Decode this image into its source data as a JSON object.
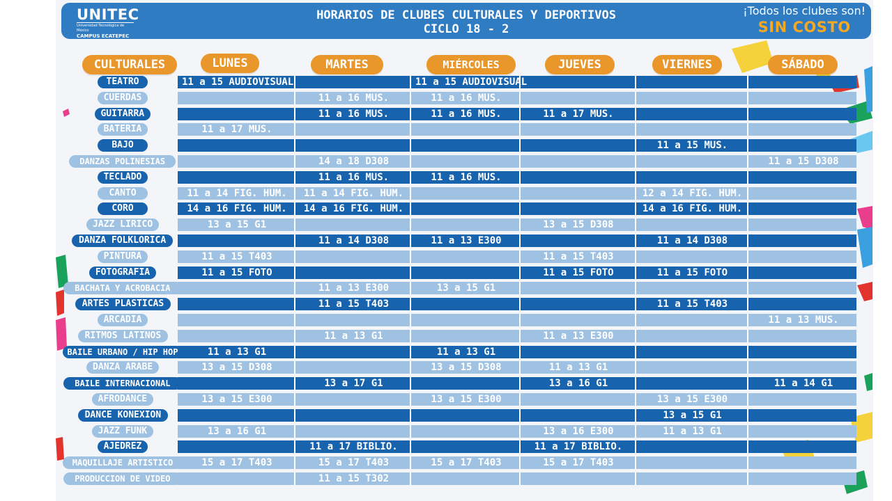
{
  "header": {
    "logo_main": "UNITEC",
    "logo_sub": "Universidad Tecnológica de México",
    "logo_campus": "CAMPUS ECATEPEC",
    "title_line1": "HORARIOS DE CLUBES CULTURALES Y DEPORTIVOS",
    "title_line2": "CICLO 18 - 2",
    "promo_line1": "¡Todos los clubes son!",
    "promo_line2": "SIN COSTO"
  },
  "section_label": "CULTURALES",
  "days": [
    "LUNES",
    "MARTES",
    "MIÉRCOLES",
    "JUEVES",
    "VIERNES",
    "SÁBADO"
  ],
  "colors": {
    "dark_row": "#1863ad",
    "light_row": "#9fc1e2",
    "header": "#2f7cc3",
    "pill": "#e9962a",
    "promo": "#f7a823"
  },
  "clubs": [
    {
      "name": "TEATRO",
      "shade": "dark",
      "schedule": [
        "11 a 15 AUDIOVISUAL",
        "",
        "11 a 15 AUDIOVISUAL",
        "",
        "",
        ""
      ]
    },
    {
      "name": "CUERDAS",
      "shade": "light",
      "schedule": [
        "",
        "11 a 16 MUS.",
        "11 a 16 MUS.",
        "",
        "",
        ""
      ]
    },
    {
      "name": "GUITARRA",
      "shade": "dark",
      "schedule": [
        "",
        "11 a 16 MUS.",
        "11 a 16 MUS.",
        "11 a 17 MUS.",
        "",
        ""
      ]
    },
    {
      "name": "BATERIA",
      "shade": "light",
      "schedule": [
        "11 a 17 MUS.",
        "",
        "",
        "",
        "",
        ""
      ]
    },
    {
      "name": "BAJO",
      "shade": "dark",
      "schedule": [
        "",
        "",
        "",
        "",
        "11 a 15 MUS.",
        ""
      ]
    },
    {
      "name": "DANZAS POLINESIAS",
      "shade": "light",
      "schedule": [
        "",
        "14 a 18 D308",
        "",
        "",
        "",
        "11 a 15 D308"
      ]
    },
    {
      "name": "TECLADO",
      "shade": "dark",
      "schedule": [
        "",
        "11 a 16 MUS.",
        "11 a 16 MUS.",
        "",
        "",
        ""
      ]
    },
    {
      "name": "CANTO",
      "shade": "light",
      "schedule": [
        "11 a 14 FIG. HUM.",
        "11 a 14 FIG. HUM.",
        "",
        "",
        "12 a 14 FIG. HUM.",
        ""
      ]
    },
    {
      "name": "CORO",
      "shade": "dark",
      "schedule": [
        "14 a 16 FIG. HUM.",
        "14 a 16 FIG. HUM.",
        "",
        "",
        "14 a 16 FIG. HUM.",
        ""
      ]
    },
    {
      "name": "JAZZ LIRICO",
      "shade": "light",
      "schedule": [
        "13 a 15 G1",
        "",
        "",
        "13 a 15 D308",
        "",
        ""
      ]
    },
    {
      "name": "DANZA FOLKLORICA",
      "shade": "dark",
      "schedule": [
        "",
        "11 a 14 D308",
        "11 a 13 E300",
        "",
        "11 a 14 D308",
        ""
      ]
    },
    {
      "name": "PINTURA",
      "shade": "light",
      "schedule": [
        "11 a 15 T403",
        "",
        "",
        "11 a 15 T403",
        "",
        ""
      ]
    },
    {
      "name": "FOTOGRAFIA",
      "shade": "dark",
      "schedule": [
        "11 a 15 FOTO",
        "",
        "",
        "11 a 15 FOTO",
        "11 a 15 FOTO",
        ""
      ]
    },
    {
      "name": "BACHATA Y ACROBACIA",
      "shade": "light",
      "schedule": [
        "",
        "11 a 13 E300",
        "13 a 15 G1",
        "",
        "",
        ""
      ]
    },
    {
      "name": "ARTES PLASTICAS",
      "shade": "dark",
      "schedule": [
        "",
        "11 a 15 T403",
        "",
        "",
        "11 a 15 T403",
        ""
      ]
    },
    {
      "name": "ARCADIA",
      "shade": "light",
      "schedule": [
        "",
        "",
        "",
        "",
        "",
        "11 a 13 MUS."
      ]
    },
    {
      "name": "RITMOS LATINOS",
      "shade": "light",
      "schedule": [
        "",
        "11 a 13 G1",
        "",
        "11 a 13 E300",
        "",
        ""
      ]
    },
    {
      "name": "BAILE URBANO / HIP HOP",
      "shade": "dark",
      "schedule": [
        "11 a 13 G1",
        "",
        "11 a 13 G1",
        "",
        "",
        ""
      ]
    },
    {
      "name": "DANZA ARABE",
      "shade": "light",
      "schedule": [
        "13 a 15 D308",
        "",
        "13 a 15 D308",
        "11 a 13 G1",
        "",
        ""
      ]
    },
    {
      "name": "BAILE INTERNACIONAL",
      "shade": "dark",
      "schedule": [
        "",
        "13 a 17 G1",
        "",
        "13 a 16 G1",
        "",
        "11 a 14 G1"
      ]
    },
    {
      "name": "AFRODANCE",
      "shade": "light",
      "schedule": [
        "13 a 15 E300",
        "",
        "13 a 15 E300",
        "",
        "13 a 15 E300",
        ""
      ]
    },
    {
      "name": "DANCE KONEXION",
      "shade": "dark",
      "schedule": [
        "",
        "",
        "",
        "",
        "13 a 15 G1",
        ""
      ]
    },
    {
      "name": "JAZZ FUNK",
      "shade": "light",
      "schedule": [
        "13 a 16 G1",
        "",
        "",
        "13 a 16 E300",
        "11 a 13 G1",
        ""
      ]
    },
    {
      "name": "AJEDREZ",
      "shade": "dark",
      "schedule": [
        "",
        "11 a 17 BIBLIO.",
        "",
        "11 a 17 BIBLIO.",
        "",
        ""
      ]
    },
    {
      "name": "MAQUILLAJE ARTISTICO",
      "shade": "light",
      "schedule": [
        "15 a 17 T403",
        "15 a 17 T403",
        "15 a 17 T403",
        "15 a 17 T403",
        "",
        ""
      ]
    },
    {
      "name": "PRODUCCION DE VIDEO",
      "shade": "light",
      "schedule": [
        "",
        "11 a 15 T302",
        "",
        "",
        "",
        ""
      ]
    }
  ]
}
